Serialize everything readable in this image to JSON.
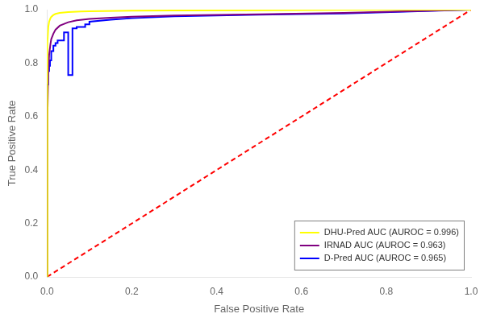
{
  "chart_data": {
    "type": "line",
    "xlabel": "False Positive Rate",
    "ylabel": "True Positive Rate",
    "xlim": [
      0,
      1
    ],
    "ylim": [
      0,
      1
    ],
    "xticks": [
      {
        "value": 0,
        "label": "0.0"
      },
      0.2,
      0.4,
      0.6,
      0.8,
      {
        "value": 1,
        "label": "1.0"
      }
    ],
    "yticks": [
      {
        "value": 0,
        "label": "0.0"
      },
      0.2,
      0.4,
      0.6,
      0.8,
      {
        "value": 1,
        "label": "1.0"
      }
    ],
    "grid": false,
    "legend": "lower right",
    "series": [
      {
        "name": "DHU-Pred AUC (AUROC = 0.996)",
        "color": "yellow",
        "x": [
          0.0,
          0.001,
          0.003,
          0.005,
          0.008,
          0.01,
          0.015,
          0.02,
          0.03,
          0.05,
          0.08,
          0.1,
          0.2,
          0.3,
          0.5,
          0.7,
          1.0
        ],
        "values": [
          0.0,
          0.88,
          0.935,
          0.955,
          0.968,
          0.973,
          0.98,
          0.984,
          0.988,
          0.991,
          0.993,
          0.994,
          0.996,
          0.997,
          0.998,
          0.999,
          1.0
        ]
      },
      {
        "name": "IRNAD AUC (AUROC = 0.963)",
        "color": "#800080",
        "x": [
          0.0,
          0.001,
          0.003,
          0.005,
          0.008,
          0.01,
          0.015,
          0.02,
          0.03,
          0.05,
          0.07,
          0.1,
          0.15,
          0.2,
          0.3,
          0.5,
          0.7,
          1.0
        ],
        "values": [
          0.0,
          0.6,
          0.76,
          0.83,
          0.87,
          0.89,
          0.91,
          0.925,
          0.94,
          0.953,
          0.96,
          0.965,
          0.97,
          0.974,
          0.978,
          0.983,
          0.988,
          1.0
        ]
      },
      {
        "name": "D-Pred AUC (AUROC = 0.965)",
        "color": "blue",
        "x": [
          0.0,
          0.0,
          0.003,
          0.003,
          0.005,
          0.005,
          0.007,
          0.007,
          0.01,
          0.01,
          0.015,
          0.015,
          0.02,
          0.02,
          0.025,
          0.025,
          0.04,
          0.04,
          0.05,
          0.05,
          0.06,
          0.06,
          0.07,
          0.07,
          0.09,
          0.09,
          0.1,
          0.1,
          0.15,
          0.2,
          0.3,
          0.5,
          0.7,
          1.0
        ],
        "values": [
          0.0,
          0.72,
          0.72,
          0.77,
          0.77,
          0.79,
          0.79,
          0.81,
          0.81,
          0.845,
          0.845,
          0.865,
          0.865,
          0.875,
          0.875,
          0.885,
          0.885,
          0.915,
          0.915,
          0.755,
          0.755,
          0.93,
          0.93,
          0.935,
          0.935,
          0.945,
          0.945,
          0.955,
          0.962,
          0.968,
          0.975,
          0.981,
          0.986,
          1.0
        ]
      },
      {
        "color": "red",
        "line_style": "dashed",
        "x": [
          0,
          1
        ],
        "values": [
          0,
          1
        ]
      }
    ]
  }
}
